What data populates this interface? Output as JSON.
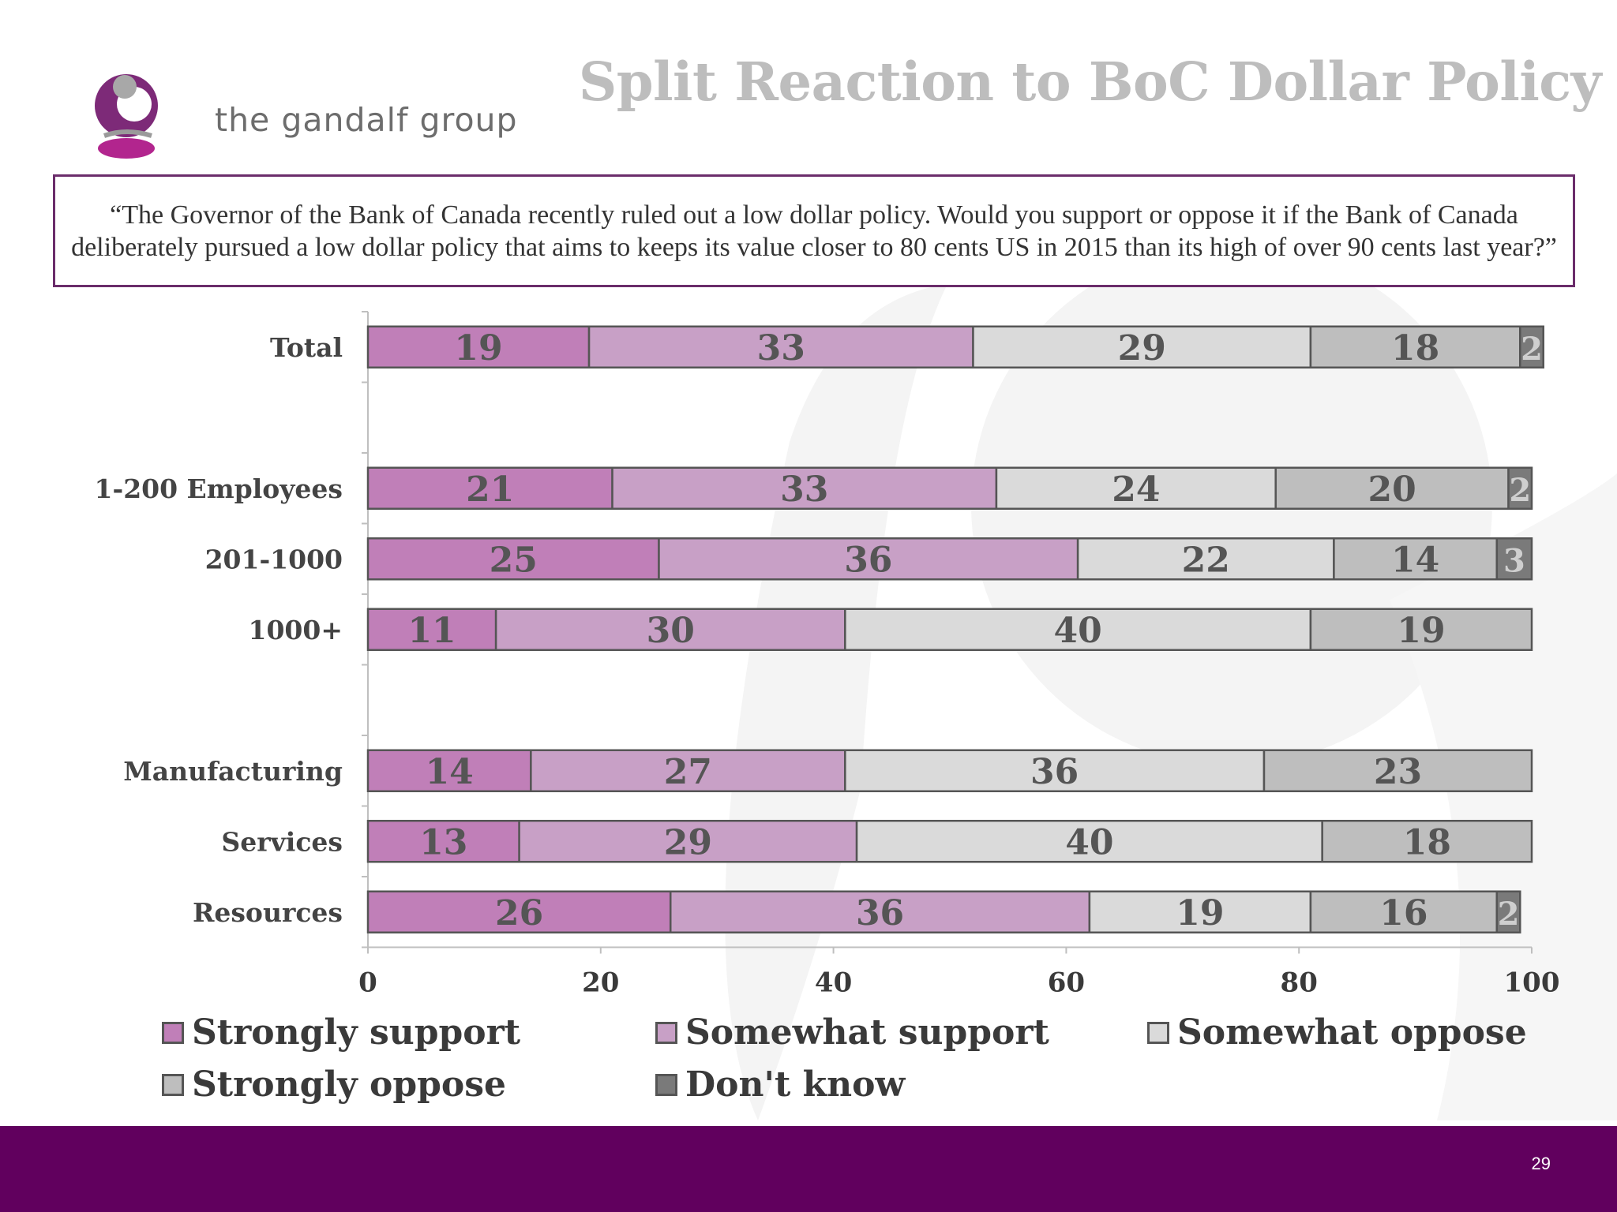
{
  "brand": {
    "name": "the gandalf group"
  },
  "slide": {
    "title": "Split Reaction to BoC Dollar Policy",
    "question": "“The Governor of the Bank of Canada recently ruled out a low dollar policy. Would you support or oppose it if the Bank of Canada deliberately pursued a low dollar policy that aims to keeps its value closer to 80 cents US in 2015 than its high of over 90 cents last year?”",
    "page_number": "29"
  },
  "colors": {
    "accent": "#6b2d6b",
    "footer": "#61005e",
    "title": "#bdbdbd"
  },
  "chart_data": {
    "type": "bar",
    "orientation": "horizontal",
    "stacked": true,
    "categories": [
      "Total",
      "1-200 Employees",
      "201-1000",
      "1000+",
      "Manufacturing",
      "Services",
      "Resources"
    ],
    "series": [
      {
        "name": "Strongly support",
        "color": "#c07fb8",
        "values": [
          19,
          21,
          25,
          11,
          14,
          13,
          26
        ]
      },
      {
        "name": "Somewhat support",
        "color": "#c8a0c6",
        "values": [
          33,
          33,
          36,
          30,
          27,
          29,
          36
        ]
      },
      {
        "name": "Somewhat oppose",
        "color": "#dadada",
        "values": [
          29,
          24,
          22,
          40,
          36,
          40,
          19
        ]
      },
      {
        "name": "Strongly oppose",
        "color": "#bebebe",
        "values": [
          18,
          20,
          14,
          19,
          23,
          18,
          16
        ]
      },
      {
        "name": "Don't know",
        "color": "#7a7a7a",
        "values": [
          2,
          2,
          3,
          null,
          null,
          null,
          2
        ]
      }
    ],
    "xlim": [
      0,
      100
    ],
    "xticks": [
      0,
      20,
      40,
      60,
      80,
      100
    ],
    "xlabel": "",
    "ylabel": "",
    "legend_position": "bottom",
    "grid": false
  }
}
